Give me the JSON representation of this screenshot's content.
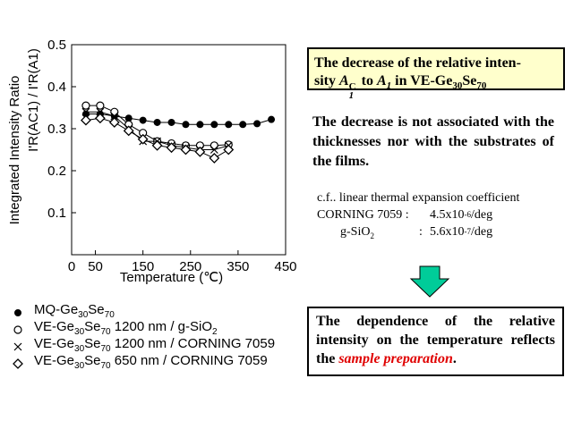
{
  "chart_data": {
    "type": "scatter",
    "xlabel": "Temperature",
    "xunit": "(℃)",
    "ylabel_prefix": "Integrated Intensity Ratio",
    "ylabel_expr": "I'R(AC1) / I'R(A1)",
    "xlim": [
      0,
      450
    ],
    "ylim": [
      0,
      0.5
    ],
    "xticks": [
      "0",
      "50",
      "150",
      "250",
      "350",
      "450"
    ],
    "xtick_values": [
      0,
      50,
      150,
      250,
      350,
      450
    ],
    "yticks": [
      "0.1",
      "0.2",
      "0.3",
      "0.4",
      "0.5"
    ],
    "ytick_values": [
      0.1,
      0.2,
      0.3,
      0.4,
      0.5
    ],
    "series": [
      {
        "name": "MQ-Ge30Se70",
        "marker": "filled-circle",
        "connected": true,
        "x": [
          30,
          60,
          90,
          120,
          150,
          180,
          210,
          240,
          270,
          300,
          330,
          360,
          390,
          420
        ],
        "y": [
          0.335,
          0.335,
          0.33,
          0.325,
          0.32,
          0.315,
          0.315,
          0.31,
          0.31,
          0.31,
          0.31,
          0.31,
          0.312,
          0.322
        ]
      },
      {
        "name": "VE-Ge30Se70 1200 nm / g-SiO2",
        "marker": "open-circle",
        "connected": true,
        "x": [
          30,
          60,
          90,
          120,
          150,
          180,
          210,
          240,
          270,
          300,
          330
        ],
        "y": [
          0.355,
          0.355,
          0.34,
          0.31,
          0.29,
          0.27,
          0.265,
          0.26,
          0.26,
          0.26,
          0.262
        ]
      },
      {
        "name": "VE-Ge30Se70 1200 nm / CORNING 7059",
        "marker": "cross",
        "connected": true,
        "x": [
          30,
          60,
          90,
          120,
          150,
          180,
          210,
          240,
          270,
          300,
          330
        ],
        "y": [
          0.34,
          0.34,
          0.33,
          0.3,
          0.27,
          0.27,
          0.26,
          0.255,
          0.25,
          0.25,
          0.26
        ]
      },
      {
        "name": "VE-Ge30Se70 650 nm / CORNING 7059",
        "marker": "open-diamond",
        "connected": true,
        "x": [
          30,
          60,
          90,
          120,
          150,
          180,
          210,
          240,
          270,
          300,
          330
        ],
        "y": [
          0.32,
          0.325,
          0.315,
          0.295,
          0.275,
          0.26,
          0.255,
          0.25,
          0.245,
          0.23,
          0.25
        ]
      }
    ]
  },
  "legend": [
    {
      "pre": "MQ-Ge",
      "sub1": "30",
      "mid": "Se",
      "sub2": "70",
      "post": "",
      "sub3": ""
    },
    {
      "pre": "VE-Ge",
      "sub1": "30",
      "mid": "Se",
      "sub2": "70",
      "post": " 1200 nm / g-SiO",
      "sub3": "2"
    },
    {
      "pre": "VE-Ge",
      "sub1": "30",
      "mid": "Se",
      "sub2": "70",
      "post": " 1200 nm / CORNING 7059",
      "sub3": ""
    },
    {
      "pre": "VE-Ge",
      "sub1": "30",
      "mid": "Se",
      "sub2": "70",
      "post": " 650 nm / CORNING 7059",
      "sub3": ""
    }
  ],
  "title_box": {
    "line1": "The decrease of the relative inten-",
    "line2_pre": "sity ",
    "a1c": "A",
    "a1c_sub": "1",
    "a1c_sup": "C",
    "to": " to ",
    "a1": "A",
    "a1_sub": "1",
    "in": " in VE-Ge",
    "ge_sub": "30",
    "se": "Se",
    "se_sub": "70"
  },
  "note": "The decrease is not associated with the thicknesses nor with the substrates of the films.",
  "cf": {
    "heading": "c.f.. linear thermal expansion coefficient",
    "row1_label": "CORNING 7059 :",
    "row1_value_pre": "4.5x10",
    "row1_exp": "-6",
    "row1_unit": " /deg",
    "row2_label": "g-SiO",
    "row2_sub": "2",
    "row2_colon": ":",
    "row2_value_pre": "5.6x10",
    "row2_exp": "-7",
    "row2_unit": " /deg"
  },
  "arrow_color": "#00cc99",
  "conclusion": {
    "text": "The dependence of the relative intensity on the temperature reflects the ",
    "highlight": "sample preparation",
    "end": "."
  },
  "colors": {
    "highlight": "#e00000",
    "title_bg": "#ffffcc"
  }
}
